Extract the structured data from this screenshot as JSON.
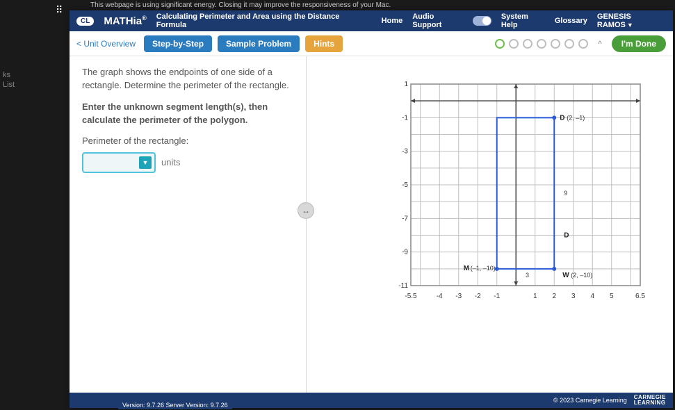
{
  "browser_note": "This webpage is using significant energy. Closing it may improve the responsiveness of your Mac.",
  "left_rail": {
    "item1": "ks",
    "item2": "List"
  },
  "header": {
    "logo_badge": "CL",
    "brand": "MATHia",
    "brand_reg": "®",
    "topic": "Calculating Perimeter and Area using the Distance Formula",
    "links": {
      "home": "Home",
      "audio": "Audio Support",
      "help": "System Help",
      "glossary": "Glossary",
      "user": "GENESIS RAMOS"
    }
  },
  "tabs": {
    "unit_overview": "< Unit Overview",
    "step": "Step-by-Step",
    "sample": "Sample Problem",
    "hints": "Hints",
    "done": "I'm Done"
  },
  "problem": {
    "intro": "The graph shows the endpoints of one side of a rectangle. Determine the perimeter of the rectangle.",
    "instruct": "Enter the unknown segment length(s), then calculate the perimeter of the polygon.",
    "perim_label": "Perimeter of the rectangle:",
    "units": "units"
  },
  "graph": {
    "x_min": -5.5,
    "x_max": 6.5,
    "x_ticks": [
      -5.5,
      -4,
      -3,
      -2,
      -1,
      1,
      2,
      3,
      4,
      5,
      6.5
    ],
    "y_min": -11,
    "y_max": 1,
    "y_ticks": [
      -1,
      -3,
      -5,
      -7,
      -9,
      -11
    ],
    "points": {
      "D": {
        "x": 2,
        "y": -1,
        "label": "D",
        "coord": "(2, –1)"
      },
      "W": {
        "x": 2,
        "y": -10,
        "label": "W",
        "coord": "(2, –10)"
      },
      "M": {
        "x": -1,
        "y": -10,
        "label": "M",
        "coord": "(–1, –10)"
      },
      "TL": {
        "x": -1,
        "y": -1
      }
    },
    "side_labels": {
      "right_9": "9",
      "bottom_3": "3",
      "right_D": "D"
    },
    "colors": {
      "grid": "#bfbfbf",
      "axis": "#444",
      "rect": "#2b5bd7",
      "border": "#888"
    }
  },
  "footer": {
    "copyright": "© 2023 Carnegie Learning",
    "logo_top": "CARNEGIE",
    "logo_bot": "LEARNING",
    "version": "Version: 9.7.26   Server Version: 9.7.26"
  }
}
